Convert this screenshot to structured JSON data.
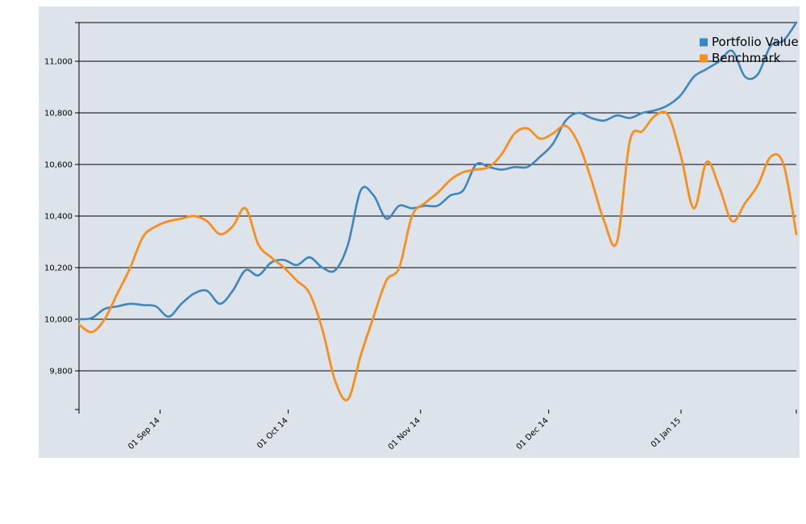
{
  "colors": {
    "panel": "#dce3eb",
    "grid": "#000000",
    "portfolio": "#3f86bd",
    "benchmark": "#f98e1b"
  },
  "chart_data": {
    "type": "line",
    "title": "",
    "xlabel": "",
    "ylabel": "",
    "xlim": [
      "2014-08-13",
      "2015-01-28"
    ],
    "ylim": [
      9650,
      11150
    ],
    "grid": "horizontal",
    "legend_position": "top-right",
    "y_ticks": [
      9800,
      10000,
      10200,
      10400,
      10600,
      10800,
      11000
    ],
    "y_tick_labels": [
      "9,800",
      "10,000",
      "10,200",
      "10,400",
      "10,600",
      "10,800",
      "11,000"
    ],
    "x_ticks": [
      "2014-09-01",
      "2014-10-01",
      "2014-11-01",
      "2014-12-01",
      "2015-01-01"
    ],
    "x_tick_labels": [
      "01 Sep 14",
      "01 Oct 14",
      "01 Nov 14",
      "01 Dec 14",
      "01 Jan 15"
    ],
    "series": [
      {
        "name": "Portfolio Value",
        "color": "#3f86bd",
        "x": [
          "2014-08-13",
          "2014-08-16",
          "2014-08-19",
          "2014-08-22",
          "2014-08-25",
          "2014-08-28",
          "2014-08-31",
          "2014-09-03",
          "2014-09-06",
          "2014-09-09",
          "2014-09-12",
          "2014-09-15",
          "2014-09-18",
          "2014-09-21",
          "2014-09-24",
          "2014-09-27",
          "2014-09-30",
          "2014-10-03",
          "2014-10-06",
          "2014-10-09",
          "2014-10-12",
          "2014-10-15",
          "2014-10-18",
          "2014-10-21",
          "2014-10-24",
          "2014-10-27",
          "2014-10-30",
          "2014-11-02",
          "2014-11-05",
          "2014-11-08",
          "2014-11-11",
          "2014-11-14",
          "2014-11-17",
          "2014-11-20",
          "2014-11-23",
          "2014-11-26",
          "2014-11-29",
          "2014-12-02",
          "2014-12-05",
          "2014-12-08",
          "2014-12-11",
          "2014-12-14",
          "2014-12-17",
          "2014-12-20",
          "2014-12-23",
          "2014-12-26",
          "2014-12-29",
          "2015-01-01",
          "2015-01-04",
          "2015-01-07",
          "2015-01-10",
          "2015-01-13",
          "2015-01-16",
          "2015-01-19",
          "2015-01-22",
          "2015-01-25",
          "2015-01-28"
        ],
        "values": [
          10000,
          10005,
          10040,
          10050,
          10060,
          10055,
          10050,
          10010,
          10060,
          10100,
          10110,
          10060,
          10110,
          10190,
          10170,
          10220,
          10230,
          10210,
          10240,
          10200,
          10190,
          10290,
          10500,
          10480,
          10390,
          10440,
          10430,
          10440,
          10440,
          10480,
          10500,
          10600,
          10590,
          10580,
          10590,
          10590,
          10630,
          10680,
          10770,
          10800,
          10780,
          10770,
          10790,
          10780,
          10800,
          10810,
          10830,
          10870,
          10940,
          10970,
          11000,
          11040,
          10940,
          10950,
          11060,
          11080,
          11150
        ]
      },
      {
        "name": "Benchmark",
        "color": "#f98e1b",
        "x": [
          "2014-08-13",
          "2014-08-16",
          "2014-08-19",
          "2014-08-22",
          "2014-08-25",
          "2014-08-28",
          "2014-08-31",
          "2014-09-03",
          "2014-09-06",
          "2014-09-09",
          "2014-09-12",
          "2014-09-15",
          "2014-09-18",
          "2014-09-21",
          "2014-09-24",
          "2014-09-27",
          "2014-09-30",
          "2014-10-03",
          "2014-10-06",
          "2014-10-09",
          "2014-10-12",
          "2014-10-15",
          "2014-10-18",
          "2014-10-21",
          "2014-10-24",
          "2014-10-27",
          "2014-10-30",
          "2014-11-02",
          "2014-11-05",
          "2014-11-08",
          "2014-11-11",
          "2014-11-14",
          "2014-11-17",
          "2014-11-20",
          "2014-11-23",
          "2014-11-26",
          "2014-11-29",
          "2014-12-02",
          "2014-12-05",
          "2014-12-08",
          "2014-12-11",
          "2014-12-14",
          "2014-12-17",
          "2014-12-20",
          "2014-12-23",
          "2014-12-26",
          "2014-12-29",
          "2015-01-01",
          "2015-01-04",
          "2015-01-07",
          "2015-01-10",
          "2015-01-13",
          "2015-01-16",
          "2015-01-19",
          "2015-01-22",
          "2015-01-25",
          "2015-01-28"
        ],
        "values": [
          9980,
          9950,
          10000,
          10100,
          10200,
          10320,
          10360,
          10380,
          10390,
          10400,
          10380,
          10330,
          10360,
          10430,
          10290,
          10240,
          10200,
          10150,
          10100,
          9960,
          9760,
          9690,
          9860,
          10010,
          10150,
          10200,
          10400,
          10450,
          10490,
          10540,
          10570,
          10580,
          10590,
          10640,
          10720,
          10740,
          10700,
          10720,
          10750,
          10680,
          10540,
          10380,
          10300,
          10690,
          10730,
          10790,
          10790,
          10630,
          10430,
          10610,
          10510,
          10380,
          10450,
          10520,
          10630,
          10600,
          10330
        ]
      }
    ]
  }
}
